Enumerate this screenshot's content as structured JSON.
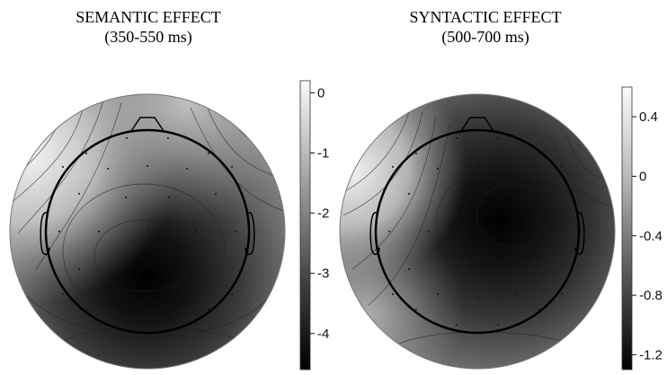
{
  "panels": [
    {
      "title": "SEMANTIC EFFECT",
      "subtitle": "(350-550 ms)",
      "colorbar_ticks": [
        {
          "label": "0",
          "value": 0
        },
        {
          "label": "-1",
          "value": -1
        },
        {
          "label": "-2",
          "value": -2
        },
        {
          "label": "-3",
          "value": -3
        },
        {
          "label": "-4",
          "value": -4
        }
      ],
      "colorbar_range": [
        -4.6,
        0.2
      ]
    },
    {
      "title": "SYNTACTIC EFFECT",
      "subtitle": "(500-700 ms)",
      "colorbar_ticks": [
        {
          "label": "0.4",
          "value": 0.4
        },
        {
          "label": "0",
          "value": 0
        },
        {
          "label": "-0.4",
          "value": -0.4
        },
        {
          "label": "-0.8",
          "value": -0.8
        },
        {
          "label": "-1.2",
          "value": -1.2
        }
      ],
      "colorbar_range": [
        -1.3,
        0.6
      ]
    }
  ],
  "colors": {
    "background": "#ffffff",
    "high": "#f2f2f2",
    "low": "#000000",
    "outline": "#000000"
  }
}
